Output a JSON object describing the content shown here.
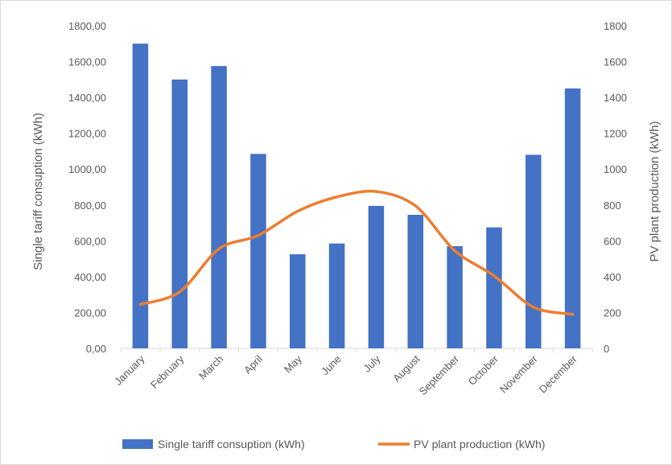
{
  "chart_data": {
    "type": "bar",
    "categories": [
      "January",
      "February",
      "March",
      "April",
      "May",
      "June",
      "July",
      "August",
      "September",
      "October",
      "November",
      "December"
    ],
    "series": [
      {
        "name": "Single tariff consuption (kWh)",
        "type": "bar",
        "axis": "left",
        "color": "#4472c4",
        "values": [
          1700,
          1500,
          1575,
          1085,
          525,
          585,
          795,
          745,
          570,
          675,
          1080,
          1450
        ]
      },
      {
        "name": "PV plant production (kWh)",
        "type": "line",
        "axis": "right",
        "color": "#ed7d31",
        "values": [
          245,
          315,
          555,
          630,
          765,
          845,
          875,
          795,
          545,
          405,
          230,
          190
        ]
      }
    ],
    "ylabel": "Single tariff consuption (kWh)",
    "y2label": "PV plant production (kWh)",
    "ylim": [
      0,
      1800
    ],
    "y2lim": [
      0,
      1800
    ],
    "yticks": [
      "0,00",
      "200,00",
      "400,00",
      "600,00",
      "800,00",
      "1000,00",
      "1200,00",
      "1400,00",
      "1600,00",
      "1800,00"
    ],
    "y2ticks": [
      "0",
      "200",
      "400",
      "600",
      "800",
      "1000",
      "1200",
      "1400",
      "1600",
      "1800"
    ],
    "grid": false,
    "legend": "bottom"
  }
}
